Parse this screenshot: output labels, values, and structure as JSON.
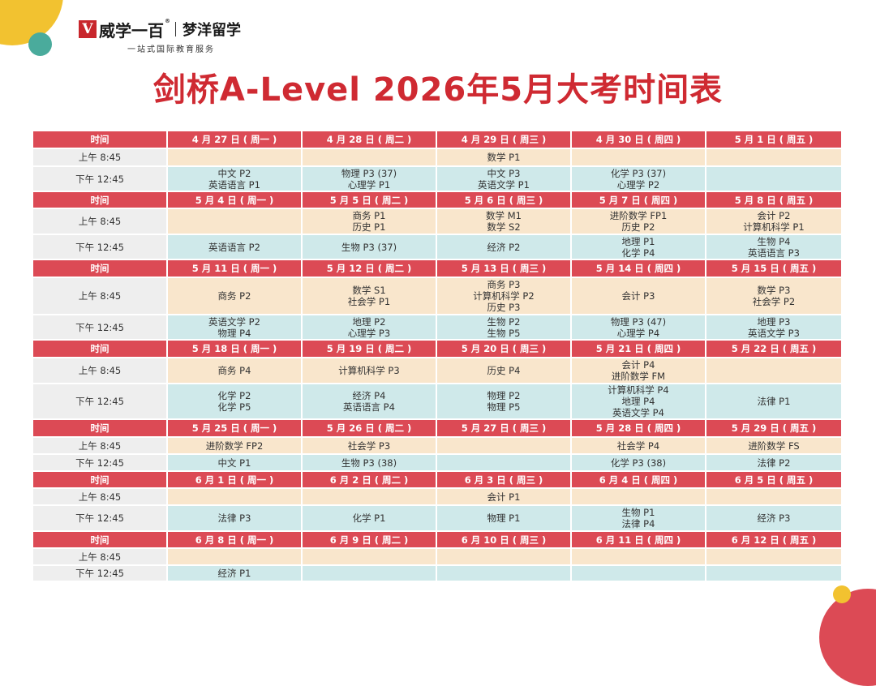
{
  "header": {
    "logo_mark": "V",
    "brand": "威学一百",
    "brand_registered": "®",
    "brand_partner": "梦洋留学",
    "tagline": "一站式国际教育服务"
  },
  "title": "剑桥A-Level 2026年5月大考时间表",
  "colors": {
    "title_red": "#cf2a32",
    "header_row_red": "#dc4a55",
    "am_row_beige": "#f9e6cc",
    "pm_row_teal": "#cfe9ea",
    "time_col_gray": "#eeeeee",
    "deco_yellow": "#f2c230",
    "deco_teal": "#4aab9c"
  },
  "table": {
    "time_header": "时间",
    "am_label": "上午 8:45",
    "pm_label": "下午 12:45",
    "weeks": [
      {
        "days": [
          "4 月 27 日 ( 周一 )",
          "4 月 28 日 ( 周二 )",
          "4 月 29 日 ( 周三 )",
          "4 月 30 日 ( 周四 )",
          "5 月 1 日 ( 周五 )"
        ],
        "am": [
          [],
          [],
          [
            "数学 P1"
          ],
          [],
          []
        ],
        "pm": [
          [
            "中文 P2",
            "英语语言 P1"
          ],
          [
            "物理 P3 (37)",
            "心理学 P1"
          ],
          [
            "中文 P3",
            "英语文学 P1"
          ],
          [
            "化学 P3 (37)",
            "心理学 P2"
          ],
          []
        ]
      },
      {
        "days": [
          "5 月 4 日 ( 周一 )",
          "5 月 5 日 ( 周二 )",
          "5 月 6 日 ( 周三 )",
          "5 月 7 日 ( 周四 )",
          "5 月 8 日 ( 周五 )"
        ],
        "am": [
          [],
          [
            "商务 P1",
            "历史 P1"
          ],
          [
            "数学 M1",
            "数学 S2"
          ],
          [
            "进阶数学 FP1",
            "历史 P2"
          ],
          [
            "会计 P2",
            "计算机科学 P1"
          ]
        ],
        "pm": [
          [
            "英语语言 P2"
          ],
          [
            "生物 P3 (37)"
          ],
          [
            "经济 P2"
          ],
          [
            "地理 P1",
            "化学 P4"
          ],
          [
            "生物 P4",
            "英语语言 P3"
          ]
        ]
      },
      {
        "days": [
          "5 月 11 日 ( 周一 )",
          "5 月 12 日 ( 周二 )",
          "5 月 13 日 ( 周三 )",
          "5 月 14 日 ( 周四 )",
          "5 月 15 日 ( 周五 )"
        ],
        "am": [
          [
            "商务 P2"
          ],
          [
            "数学 S1",
            "社会学 P1"
          ],
          [
            "商务 P3",
            "计算机科学 P2",
            "历史 P3"
          ],
          [
            "会计 P3"
          ],
          [
            "数学 P3",
            "社会学 P2"
          ]
        ],
        "pm": [
          [
            "英语文学 P2",
            "物理 P4"
          ],
          [
            "地理 P2",
            "心理学 P3"
          ],
          [
            "生物 P2",
            "生物 P5"
          ],
          [
            "物理 P3 (47)",
            "心理学 P4"
          ],
          [
            "地理 P3",
            "英语文学 P3"
          ]
        ]
      },
      {
        "days": [
          "5 月 18 日 ( 周一 )",
          "5 月 19 日 ( 周二 )",
          "5 月 20 日 ( 周三 )",
          "5 月 21 日 ( 周四 )",
          "5 月 22 日 ( 周五 )"
        ],
        "am": [
          [
            "商务 P4"
          ],
          [
            "计算机科学 P3"
          ],
          [
            "历史 P4"
          ],
          [
            "会计 P4",
            "进阶数学 FM"
          ],
          []
        ],
        "pm": [
          [
            "化学 P2",
            "化学 P5"
          ],
          [
            "经济 P4",
            "英语语言 P4"
          ],
          [
            "物理 P2",
            "物理 P5"
          ],
          [
            "计算机科学 P4",
            "地理 P4",
            "英语文学 P4"
          ],
          [
            "法律 P1"
          ]
        ]
      },
      {
        "days": [
          "5 月 25 日 ( 周一 )",
          "5 月 26 日 ( 周二 )",
          "5 月 27 日 ( 周三 )",
          "5 月 28 日 ( 周四 )",
          "5 月 29 日 ( 周五 )"
        ],
        "am": [
          [
            "进阶数学 FP2"
          ],
          [
            "社会学 P3"
          ],
          [],
          [
            "社会学 P4"
          ],
          [
            "进阶数学 FS"
          ]
        ],
        "pm": [
          [
            "中文 P1"
          ],
          [
            "生物 P3 (38)"
          ],
          [],
          [
            "化学 P3 (38)"
          ],
          [
            "法律 P2"
          ]
        ]
      },
      {
        "days": [
          "6 月 1 日 ( 周一 )",
          "6 月 2 日 ( 周二 )",
          "6 月 3 日 ( 周三 )",
          "6 月 4 日 ( 周四 )",
          "6 月 5 日 ( 周五 )"
        ],
        "am": [
          [],
          [],
          [
            "会计 P1"
          ],
          [],
          []
        ],
        "pm": [
          [
            "法律 P3"
          ],
          [
            "化学 P1"
          ],
          [
            "物理 P1"
          ],
          [
            "生物 P1",
            "法律 P4"
          ],
          [
            "经济 P3"
          ]
        ]
      },
      {
        "days": [
          "6 月 8 日 ( 周一 )",
          "6 月 9 日 ( 周二 )",
          "6 月 10 日 ( 周三 )",
          "6 月 11 日 ( 周四 )",
          "6 月 12 日 ( 周五 )"
        ],
        "am": [
          [],
          [],
          [],
          [],
          []
        ],
        "pm": [
          [
            "经济 P1"
          ],
          [],
          [],
          [],
          []
        ]
      }
    ]
  }
}
